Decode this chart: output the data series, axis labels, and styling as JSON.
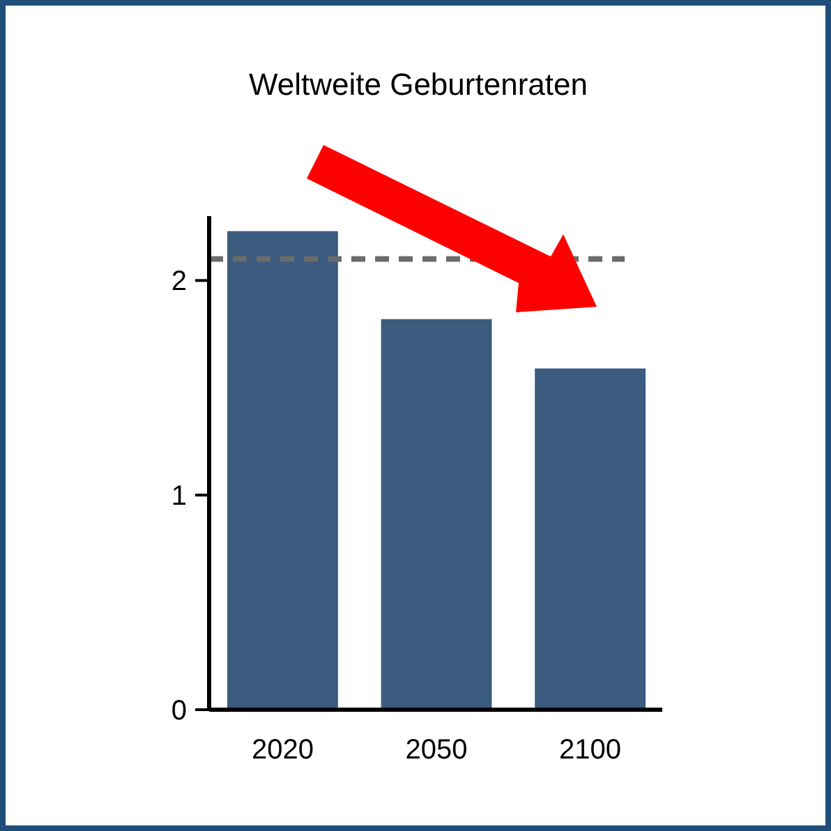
{
  "chart_data": {
    "type": "bar",
    "title": "Weltweite Geburtenraten",
    "categories": [
      "2020",
      "2050",
      "2100"
    ],
    "values": [
      2.23,
      1.82,
      1.59
    ],
    "color": "#3b5b7f",
    "ylim": [
      0,
      2.3
    ],
    "yticks": [
      0,
      1,
      2
    ],
    "grid": false,
    "ref_lines": [
      {
        "axis": "y",
        "value": 2.1,
        "color": "#6b6b6b",
        "line_style": "dashed"
      }
    ]
  }
}
